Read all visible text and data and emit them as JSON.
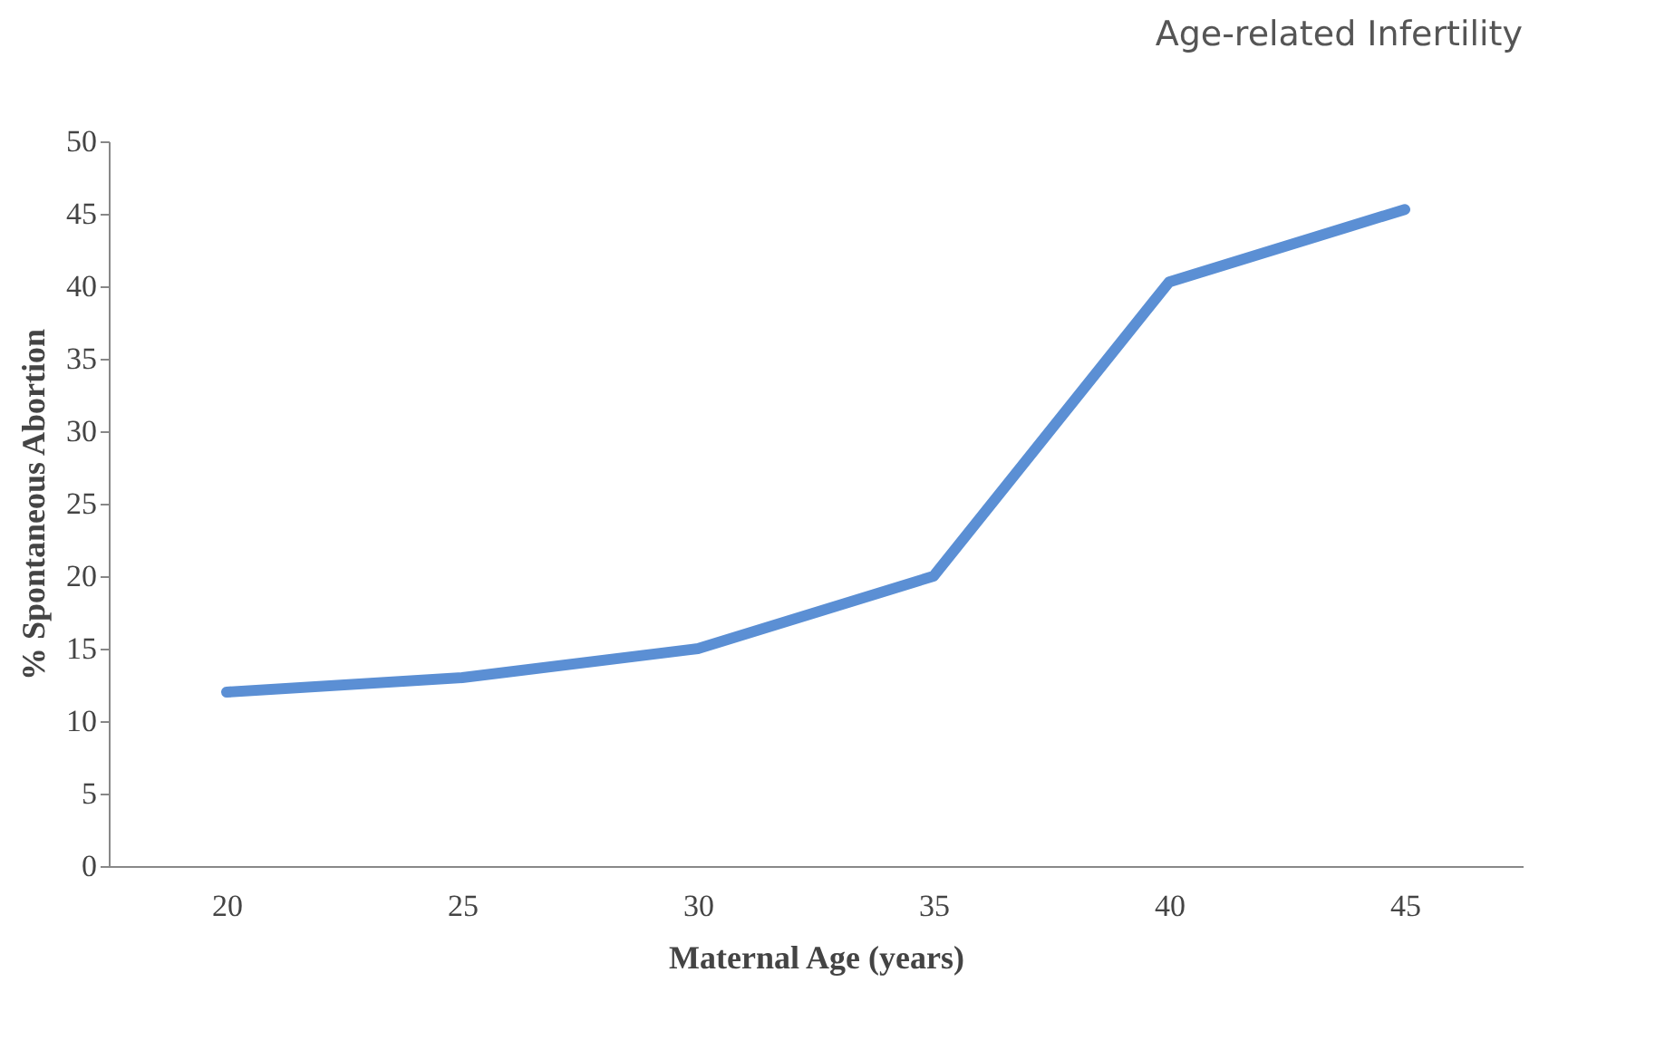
{
  "chart_data": {
    "type": "line",
    "title": "Age-related Infertility",
    "xlabel": "Maternal Age (years)",
    "ylabel": "% Spontaneous Abortion",
    "categories": [
      "20",
      "25",
      "30",
      "35",
      "40",
      "45"
    ],
    "series": [
      {
        "color": "#5b8fd4",
        "values": [
          12,
          13,
          15,
          20,
          40.3,
          45.3
        ]
      }
    ],
    "ylim": [
      0,
      50
    ],
    "yticks": [
      0,
      5,
      10,
      15,
      20,
      25,
      30,
      35,
      40,
      45,
      50
    ],
    "grid": false,
    "marker": "none",
    "line_style": "solid"
  }
}
